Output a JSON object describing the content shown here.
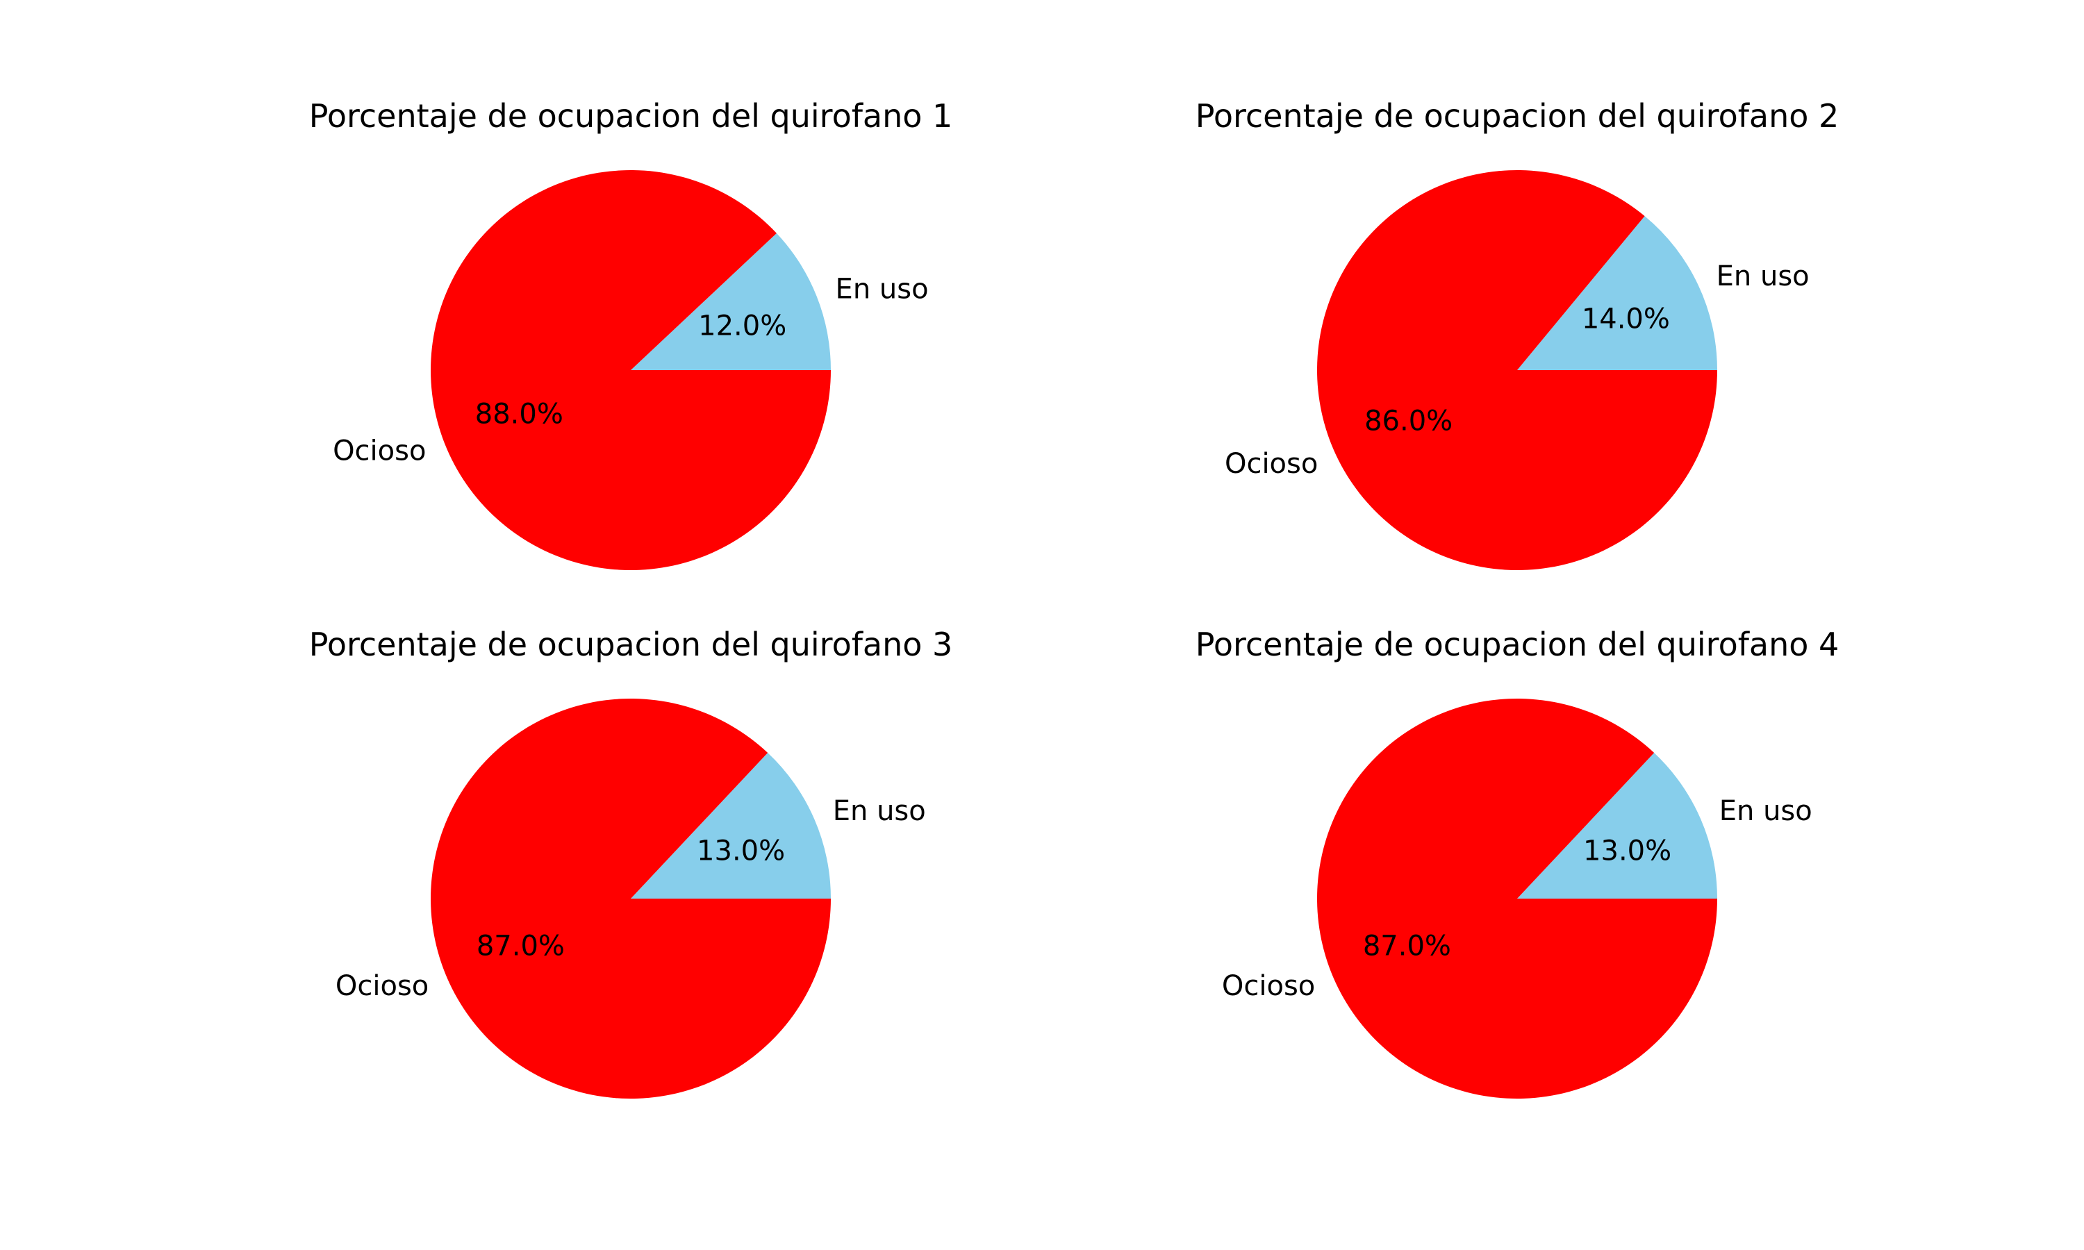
{
  "chart_data": [
    {
      "type": "pie",
      "title": "Porcentaje de ocupacion del quirofano 1",
      "slices": [
        {
          "label": "En uso",
          "value": 12.0,
          "pct_label": "12.0%",
          "color": "#87ceeb"
        },
        {
          "label": "Ocioso",
          "value": 88.0,
          "pct_label": "88.0%",
          "color": "#ff0000"
        }
      ]
    },
    {
      "type": "pie",
      "title": "Porcentaje de ocupacion del quirofano 2",
      "slices": [
        {
          "label": "En uso",
          "value": 14.0,
          "pct_label": "14.0%",
          "color": "#87ceeb"
        },
        {
          "label": "Ocioso",
          "value": 86.0,
          "pct_label": "86.0%",
          "color": "#ff0000"
        }
      ]
    },
    {
      "type": "pie",
      "title": "Porcentaje de ocupacion del quirofano 3",
      "slices": [
        {
          "label": "En uso",
          "value": 13.0,
          "pct_label": "13.0%",
          "color": "#87ceeb"
        },
        {
          "label": "Ocioso",
          "value": 87.0,
          "pct_label": "87.0%",
          "color": "#ff0000"
        }
      ]
    },
    {
      "type": "pie",
      "title": "Porcentaje de ocupacion del quirofano 4",
      "slices": [
        {
          "label": "En uso",
          "value": 13.0,
          "pct_label": "13.0%",
          "color": "#87ceeb"
        },
        {
          "label": "Ocioso",
          "value": 87.0,
          "pct_label": "87.0%",
          "color": "#ff0000"
        }
      ]
    }
  ]
}
